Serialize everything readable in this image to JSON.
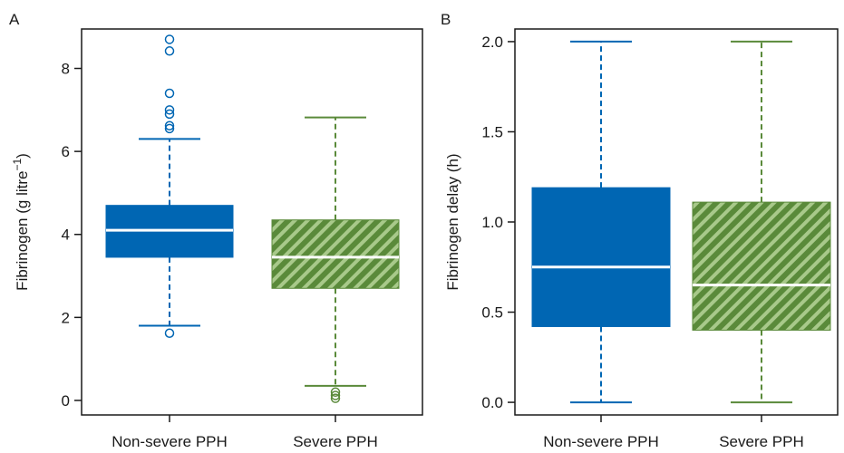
{
  "colors": {
    "non_severe": "#0066b3",
    "severe": "#5a8a3a",
    "severe_stripe": "#a8c98a",
    "median_line": "#ffffff",
    "frame": "#1a1a1a"
  },
  "chart_data": [
    {
      "panel": "A",
      "type": "boxplot",
      "ylabel": "Fibrinogen (g litre",
      "ylabel_sup": "−1",
      "ylabel_end": ")",
      "ylim": [
        -0.35,
        8.95
      ],
      "yticks": [
        0,
        2,
        4,
        6,
        8
      ],
      "ytick_labels": [
        "0",
        "2",
        "4",
        "6",
        "8"
      ],
      "grid": false,
      "categories": [
        "Non-severe PPH",
        "Severe PPH"
      ],
      "series": [
        {
          "name": "Non-severe PPH",
          "fill": "solid",
          "whisker_low": 1.8,
          "q1": 3.45,
          "median": 4.1,
          "q3": 4.7,
          "whisker_high": 6.3,
          "outliers": [
            1.62,
            6.55,
            6.62,
            6.9,
            7.0,
            7.4,
            8.42,
            8.7
          ]
        },
        {
          "name": "Severe PPH",
          "fill": "hatched",
          "whisker_low": 0.35,
          "q1": 2.7,
          "median": 3.45,
          "q3": 4.35,
          "whisker_high": 6.82,
          "outliers": [
            0.05,
            0.12,
            0.2
          ]
        }
      ]
    },
    {
      "panel": "B",
      "type": "boxplot",
      "ylabel": "Fibrinogen delay (h)",
      "ylabel_sup": "",
      "ylabel_end": "",
      "ylim": [
        -0.07,
        2.07
      ],
      "yticks": [
        0.0,
        0.5,
        1.0,
        1.5,
        2.0
      ],
      "ytick_labels": [
        "0.0",
        "0.5",
        "1.0",
        "1.5",
        "2.0"
      ],
      "grid": false,
      "categories": [
        "Non-severe PPH",
        "Severe PPH"
      ],
      "series": [
        {
          "name": "Non-severe PPH",
          "fill": "solid",
          "whisker_low": 0.0,
          "q1": 0.42,
          "median": 0.75,
          "q3": 1.19,
          "whisker_high": 2.0,
          "outliers": []
        },
        {
          "name": "Severe PPH",
          "fill": "hatched",
          "whisker_low": 0.0,
          "q1": 0.4,
          "median": 0.65,
          "q3": 1.11,
          "whisker_high": 2.0,
          "outliers": []
        }
      ]
    }
  ]
}
